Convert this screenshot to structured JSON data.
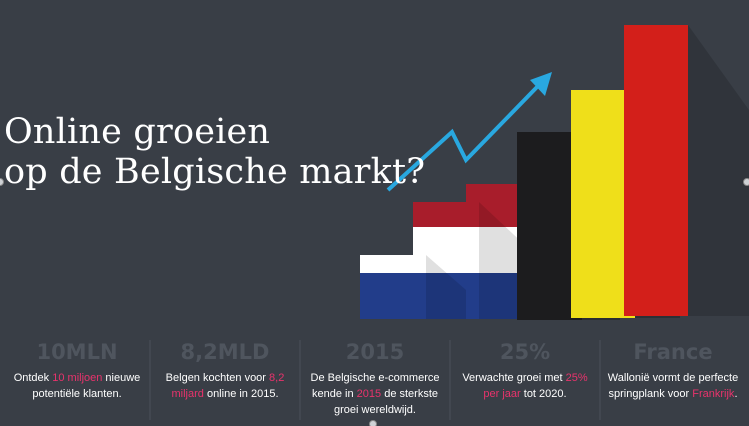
{
  "headline": {
    "line1": "Online groeien",
    "line2": "op de Belgische markt?"
  },
  "colors": {
    "background": "#393e46",
    "accent_pink": "#e8336c",
    "arrow_blue": "#29a8e0",
    "nl_red": "#ae1c28",
    "nl_white": "#ffffff",
    "nl_blue": "#21468b",
    "be_black": "#1a1a1a",
    "be_yellow": "#f2e11d",
    "be_red": "#d81e1e"
  },
  "graphic": {
    "arrow_icon": "trend-up-arrow-icon"
  },
  "stats": [
    {
      "value": "10MLN",
      "desc_parts": [
        {
          "text": "Ontdek ",
          "hl": false
        },
        {
          "text": "10 miljoen",
          "hl": true
        },
        {
          "text": " nieuwe",
          "hl": false
        }
      ],
      "desc_line2": [
        {
          "text": "potentiële klanten.",
          "hl": false
        }
      ],
      "desc_line3": []
    },
    {
      "value": "8,2MLD",
      "desc_parts": [
        {
          "text": "Belgen kochten voor ",
          "hl": false
        },
        {
          "text": "8,2",
          "hl": true
        }
      ],
      "desc_line2": [
        {
          "text": "miljard",
          "hl": true
        },
        {
          "text": " online in 2015.",
          "hl": false
        }
      ],
      "desc_line3": []
    },
    {
      "value": "2015",
      "desc_parts": [
        {
          "text": "De Belgische e-commerce",
          "hl": false
        }
      ],
      "desc_line2": [
        {
          "text": "kende in ",
          "hl": false
        },
        {
          "text": "2015",
          "hl": true
        },
        {
          "text": " de sterkste",
          "hl": false
        }
      ],
      "desc_line3": [
        {
          "text": "groei wereldwijd.",
          "hl": false
        }
      ]
    },
    {
      "value": "25%",
      "desc_parts": [
        {
          "text": "Verwachte groei met ",
          "hl": false
        },
        {
          "text": "25%",
          "hl": true
        }
      ],
      "desc_line2": [
        {
          "text": "per jaar",
          "hl": true
        },
        {
          "text": " tot 2020.",
          "hl": false
        }
      ],
      "desc_line3": []
    },
    {
      "value": "France",
      "desc_parts": [
        {
          "text": "Wallonië vormt de perfecte",
          "hl": false
        }
      ],
      "desc_line2": [
        {
          "text": "springplank voor ",
          "hl": false
        },
        {
          "text": "Frankrijk",
          "hl": true
        },
        {
          "text": ".",
          "hl": false
        }
      ],
      "desc_line3": []
    }
  ]
}
